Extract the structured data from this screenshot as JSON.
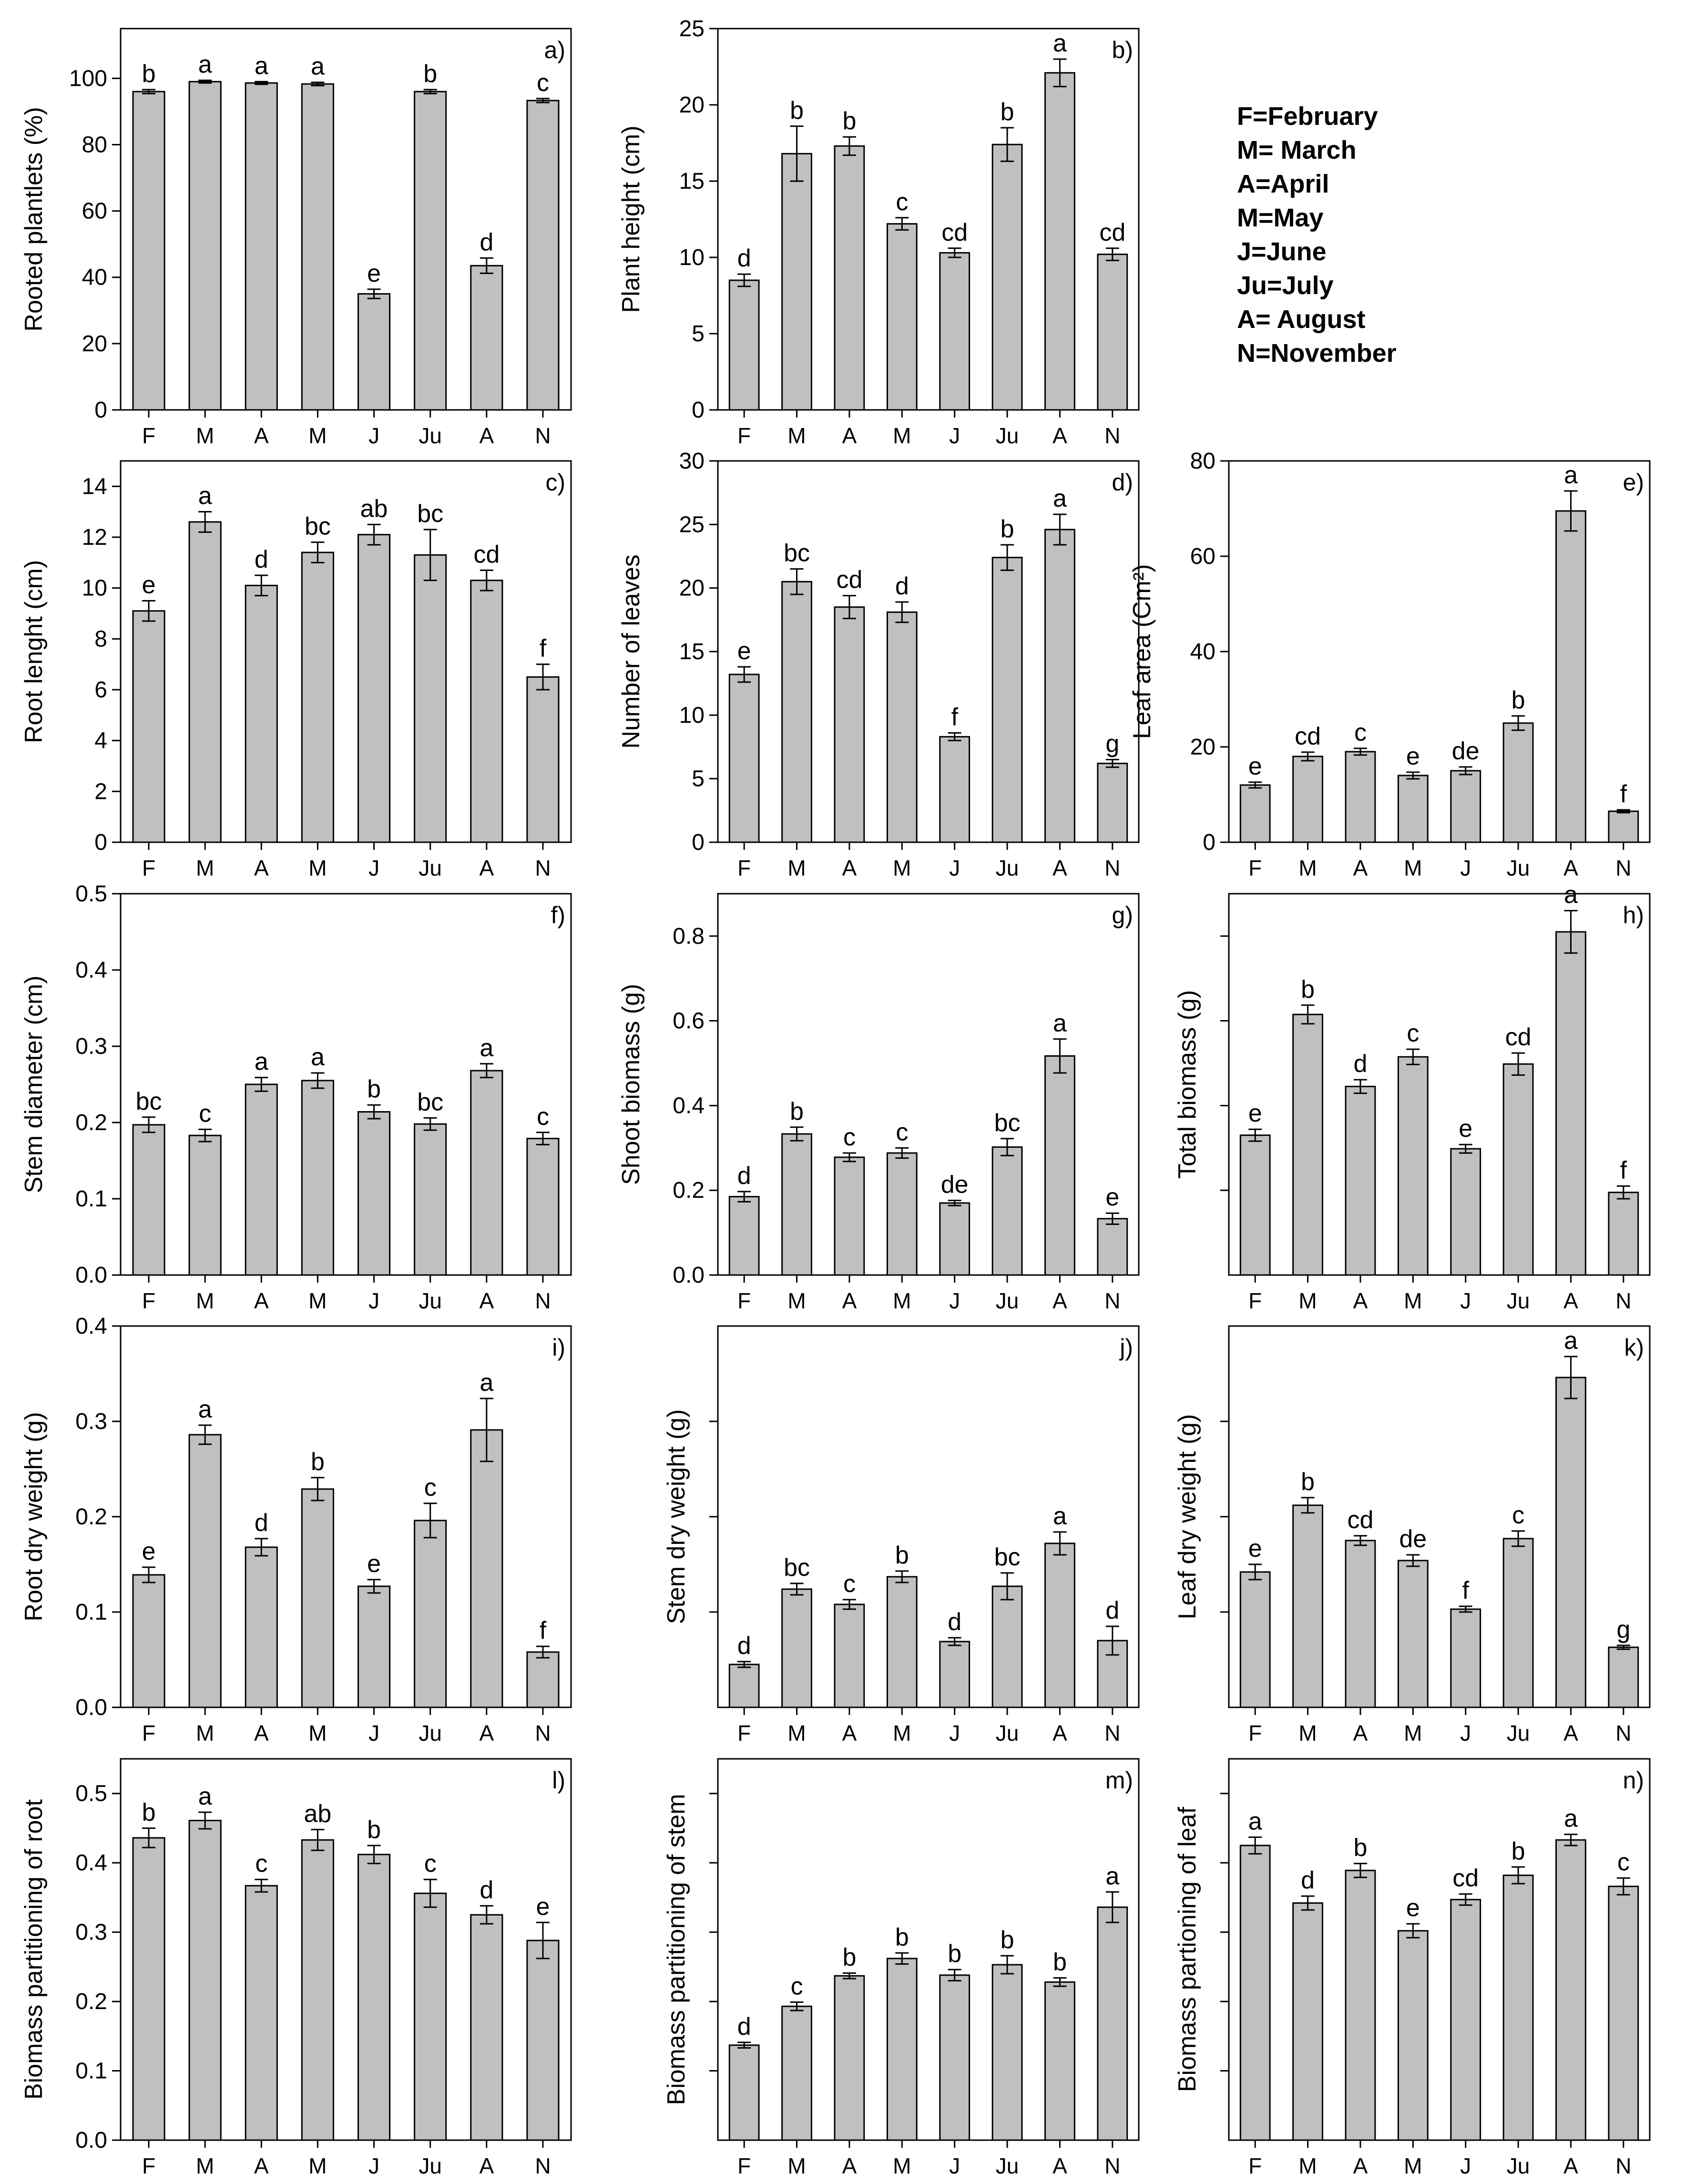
{
  "legend": {
    "lines": [
      "F=February",
      "M= March",
      "A=April",
      "M=May",
      "J=June",
      "Ju=July",
      "A= August",
      "N=November"
    ]
  },
  "chart_data": [
    {
      "id": "a",
      "type": "bar",
      "tag": "a)",
      "ylabel": "Rooted plantlets (%)",
      "ylim": [
        0,
        115
      ],
      "ticks": [
        0,
        20,
        40,
        60,
        80,
        100
      ],
      "tick_labels": [
        "0",
        "20",
        "40",
        "60",
        "80",
        "100"
      ],
      "categories": [
        "F",
        "M",
        "A",
        "M",
        "J",
        "Ju",
        "A",
        "N"
      ],
      "values": [
        96,
        99,
        98.6,
        98.3,
        35,
        96,
        43.5,
        93.3
      ],
      "errors": [
        0.6,
        0.4,
        0.4,
        0.5,
        1.4,
        0.6,
        2.3,
        0.6
      ],
      "letters": [
        "b",
        "a",
        "a",
        "a",
        "e",
        "b",
        "d",
        "c"
      ]
    },
    {
      "id": "b",
      "type": "bar",
      "tag": "b)",
      "ylabel": "Plant height (cm)",
      "ylim": [
        0,
        25
      ],
      "ticks": [
        0,
        5,
        10,
        15,
        20,
        25
      ],
      "tick_labels": [
        "0",
        "5",
        "10",
        "15",
        "20",
        "25"
      ],
      "categories": [
        "F",
        "M",
        "A",
        "M",
        "J",
        "Ju",
        "A",
        "N"
      ],
      "values": [
        8.5,
        16.8,
        17.3,
        12.2,
        10.3,
        17.4,
        22.1,
        10.2
      ],
      "errors": [
        0.4,
        1.8,
        0.6,
        0.4,
        0.3,
        1.1,
        0.9,
        0.4
      ],
      "letters": [
        "d",
        "b",
        "b",
        "c",
        "cd",
        "b",
        "a",
        "cd"
      ]
    },
    {
      "id": "c",
      "type": "bar",
      "tag": "c)",
      "ylabel": "Root lenght (cm)",
      "ylim": [
        0,
        15
      ],
      "ticks": [
        0,
        2,
        4,
        6,
        8,
        10,
        12,
        14
      ],
      "tick_labels": [
        "0",
        "2",
        "4",
        "6",
        "8",
        "10",
        "12",
        "14"
      ],
      "categories": [
        "F",
        "M",
        "A",
        "M",
        "J",
        "Ju",
        "A",
        "N"
      ],
      "values": [
        9.1,
        12.6,
        10.1,
        11.4,
        12.1,
        11.3,
        10.3,
        6.5
      ],
      "errors": [
        0.4,
        0.4,
        0.4,
        0.4,
        0.4,
        1.0,
        0.4,
        0.5
      ],
      "letters": [
        "e",
        "a",
        "d",
        "bc",
        "ab",
        "bc",
        "cd",
        "f"
      ]
    },
    {
      "id": "d",
      "type": "bar",
      "tag": "d)",
      "ylabel": "Number of leaves",
      "ylim": [
        0,
        30
      ],
      "ticks": [
        0,
        5,
        10,
        15,
        20,
        25,
        30
      ],
      "tick_labels": [
        "0",
        "5",
        "10",
        "15",
        "20",
        "25",
        "30"
      ],
      "categories": [
        "F",
        "M",
        "A",
        "M",
        "J",
        "Ju",
        "A",
        "N"
      ],
      "values": [
        13.2,
        20.5,
        18.5,
        18.1,
        8.3,
        22.4,
        24.6,
        6.2
      ],
      "errors": [
        0.6,
        1.0,
        0.9,
        0.8,
        0.3,
        1.0,
        1.2,
        0.3
      ],
      "letters": [
        "e",
        "bc",
        "cd",
        "d",
        "f",
        "b",
        "a",
        "g"
      ]
    },
    {
      "id": "e",
      "type": "bar",
      "tag": "e)",
      "ylabel": "Leaf area (Cm²)",
      "ylim": [
        0,
        80
      ],
      "ticks": [
        0,
        20,
        40,
        60,
        80
      ],
      "tick_labels": [
        "0",
        "20",
        "40",
        "60",
        "80"
      ],
      "categories": [
        "F",
        "M",
        "A",
        "M",
        "J",
        "Ju",
        "A",
        "N"
      ],
      "values": [
        12,
        18,
        19,
        14,
        15,
        25,
        69.5,
        6.5
      ],
      "errors": [
        0.6,
        0.9,
        0.7,
        0.7,
        0.8,
        1.5,
        4.2,
        0.3
      ],
      "letters": [
        "e",
        "cd",
        "c",
        "e",
        "de",
        "b",
        "a",
        "f"
      ]
    },
    {
      "id": "f",
      "type": "bar",
      "tag": "f)",
      "ylabel": "Stem diameter (cm)",
      "ylim": [
        0,
        0.5
      ],
      "ticks": [
        0,
        0.1,
        0.2,
        0.3,
        0.4,
        0.5
      ],
      "tick_labels": [
        "0.0",
        "0.1",
        "0.2",
        "0.3",
        "0.4",
        "0.5"
      ],
      "categories": [
        "F",
        "M",
        "A",
        "M",
        "J",
        "Ju",
        "A",
        "N"
      ],
      "values": [
        0.197,
        0.183,
        0.25,
        0.255,
        0.214,
        0.198,
        0.268,
        0.179
      ],
      "errors": [
        0.01,
        0.008,
        0.009,
        0.01,
        0.009,
        0.008,
        0.009,
        0.008
      ],
      "letters": [
        "bc",
        "c",
        "a",
        "a",
        "b",
        "bc",
        "a",
        "c"
      ]
    },
    {
      "id": "g",
      "type": "bar",
      "tag": "g)",
      "ylabel": "Shoot biomass (g)",
      "ylim": [
        0,
        0.9
      ],
      "ticks": [
        0,
        0.2,
        0.4,
        0.6,
        0.8
      ],
      "tick_labels": [
        "0.0",
        "0.2",
        "0.4",
        "0.6",
        "0.8"
      ],
      "categories": [
        "F",
        "M",
        "A",
        "M",
        "J",
        "Ju",
        "A",
        "N"
      ],
      "values": [
        0.185,
        0.333,
        0.278,
        0.288,
        0.17,
        0.302,
        0.517,
        0.133
      ],
      "errors": [
        0.012,
        0.016,
        0.01,
        0.012,
        0.006,
        0.02,
        0.04,
        0.013
      ],
      "letters": [
        "d",
        "b",
        "c",
        "c",
        "de",
        "bc",
        "a",
        "e"
      ]
    },
    {
      "id": "h",
      "type": "bar",
      "tag": "h)",
      "ylabel": "Total biomass (g)",
      "ylim": [
        0,
        0.9
      ],
      "ticks": [
        0.2,
        0.4,
        0.6,
        0.8
      ],
      "tick_labels": [],
      "categories": [
        "F",
        "M",
        "A",
        "M",
        "J",
        "Ju",
        "A",
        "N"
      ],
      "values": [
        0.33,
        0.615,
        0.445,
        0.515,
        0.298,
        0.498,
        0.81,
        0.195
      ],
      "errors": [
        0.014,
        0.022,
        0.016,
        0.018,
        0.01,
        0.026,
        0.05,
        0.015
      ],
      "letters": [
        "e",
        "b",
        "d",
        "c",
        "e",
        "cd",
        "a",
        "f"
      ]
    },
    {
      "id": "i",
      "type": "bar",
      "tag": "i)",
      "ylabel": "Root dry weight (g)",
      "ylim": [
        0,
        0.4
      ],
      "ticks": [
        0,
        0.1,
        0.2,
        0.3,
        0.4
      ],
      "tick_labels": [
        "0.0",
        "0.1",
        "0.2",
        "0.3",
        "0.4"
      ],
      "categories": [
        "F",
        "M",
        "A",
        "M",
        "J",
        "Ju",
        "A",
        "N"
      ],
      "values": [
        0.139,
        0.286,
        0.168,
        0.229,
        0.127,
        0.196,
        0.291,
        0.058
      ],
      "errors": [
        0.008,
        0.01,
        0.009,
        0.012,
        0.007,
        0.018,
        0.033,
        0.006
      ],
      "letters": [
        "e",
        "a",
        "d",
        "b",
        "e",
        "c",
        "a",
        "f"
      ]
    },
    {
      "id": "j",
      "type": "bar",
      "tag": "j)",
      "ylabel": "Stem dry weight (g)",
      "ylim": [
        0,
        0.4
      ],
      "ticks": [
        0.1,
        0.2,
        0.3
      ],
      "tick_labels": [],
      "categories": [
        "F",
        "M",
        "A",
        "M",
        "J",
        "Ju",
        "A",
        "N"
      ],
      "values": [
        0.045,
        0.124,
        0.108,
        0.137,
        0.069,
        0.127,
        0.172,
        0.07
      ],
      "errors": [
        0.003,
        0.006,
        0.005,
        0.006,
        0.004,
        0.014,
        0.012,
        0.015
      ],
      "letters": [
        "d",
        "bc",
        "c",
        "b",
        "d",
        "bc",
        "a",
        "d"
      ]
    },
    {
      "id": "k",
      "type": "bar",
      "tag": "k)",
      "ylabel": "Leaf dry weight (g)",
      "ylim": [
        0,
        0.4
      ],
      "ticks": [
        0.1,
        0.2,
        0.3
      ],
      "tick_labels": [],
      "categories": [
        "F",
        "M",
        "A",
        "M",
        "J",
        "Ju",
        "A",
        "N"
      ],
      "values": [
        0.142,
        0.212,
        0.175,
        0.154,
        0.103,
        0.177,
        0.346,
        0.063
      ],
      "errors": [
        0.008,
        0.008,
        0.005,
        0.006,
        0.003,
        0.008,
        0.022,
        0.002
      ],
      "letters": [
        "e",
        "b",
        "cd",
        "de",
        "f",
        "c",
        "a",
        "g"
      ]
    },
    {
      "id": "l",
      "type": "bar",
      "tag": "l)",
      "ylabel": "Biomass partitioning of root",
      "ylim": [
        0,
        0.55
      ],
      "ticks": [
        0,
        0.1,
        0.2,
        0.3,
        0.4,
        0.5
      ],
      "tick_labels": [
        "0.0",
        "0.1",
        "0.2",
        "0.3",
        "0.4",
        "0.5"
      ],
      "categories": [
        "F",
        "M",
        "A",
        "M",
        "J",
        "Ju",
        "A",
        "N"
      ],
      "values": [
        0.436,
        0.461,
        0.367,
        0.433,
        0.412,
        0.356,
        0.325,
        0.288
      ],
      "errors": [
        0.014,
        0.012,
        0.009,
        0.015,
        0.013,
        0.02,
        0.013,
        0.026
      ],
      "letters": [
        "b",
        "a",
        "c",
        "ab",
        "b",
        "c",
        "d",
        "e"
      ]
    },
    {
      "id": "m",
      "type": "bar",
      "tag": "m)",
      "ylabel": "Biomass partitioning of stem",
      "ylim": [
        0,
        0.55
      ],
      "ticks": [
        0.1,
        0.2,
        0.3,
        0.4,
        0.5
      ],
      "tick_labels": [],
      "categories": [
        "F",
        "M",
        "A",
        "M",
        "J",
        "Ju",
        "A",
        "N"
      ],
      "values": [
        0.137,
        0.193,
        0.237,
        0.262,
        0.238,
        0.253,
        0.228,
        0.336
      ],
      "errors": [
        0.004,
        0.006,
        0.004,
        0.008,
        0.008,
        0.013,
        0.006,
        0.022
      ],
      "letters": [
        "d",
        "c",
        "b",
        "b",
        "b",
        "b",
        "b",
        "a"
      ]
    },
    {
      "id": "n",
      "type": "bar",
      "tag": "n)",
      "ylabel": "Biomass partioning of leaf",
      "ylim": [
        0,
        0.55
      ],
      "ticks": [
        0.1,
        0.2,
        0.3,
        0.4,
        0.5
      ],
      "tick_labels": [],
      "categories": [
        "F",
        "M",
        "A",
        "M",
        "J",
        "Ju",
        "A",
        "N"
      ],
      "values": [
        0.425,
        0.342,
        0.389,
        0.302,
        0.347,
        0.382,
        0.433,
        0.366
      ],
      "errors": [
        0.012,
        0.01,
        0.01,
        0.01,
        0.008,
        0.012,
        0.008,
        0.012
      ],
      "letters": [
        "a",
        "d",
        "b",
        "e",
        "cd",
        "b",
        "a",
        "c"
      ]
    }
  ]
}
